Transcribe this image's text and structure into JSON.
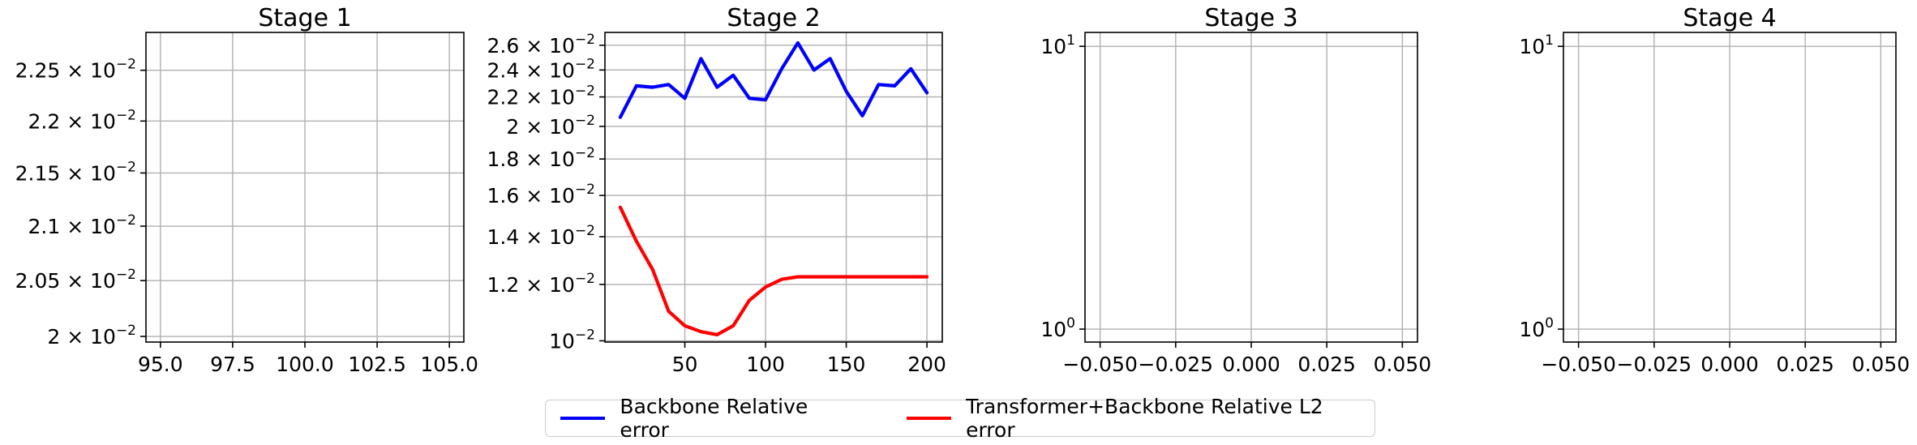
{
  "colors": {
    "backbone": "#0000ff",
    "transformer": "#ff0000",
    "grid": "#b0b0b0"
  },
  "legend": {
    "placement": "bottom-center",
    "items": [
      {
        "label": "Backbone Relative error",
        "color": "#0000ff"
      },
      {
        "label": "Transformer+Backbone Relative L2 error",
        "color": "#ff0000"
      }
    ]
  },
  "chart_data": [
    {
      "type": "line",
      "title": "Stage 1",
      "xscale": "linear",
      "yscale": "log",
      "xlim": [
        94.5,
        105.5
      ],
      "ylim": [
        0.01995,
        0.02288
      ],
      "xticks": [
        95.0,
        97.5,
        100.0,
        102.5,
        105.0
      ],
      "xtick_labels": [
        "95.0",
        "97.5",
        "100.0",
        "102.5",
        "105.0"
      ],
      "yticks": [
        {
          "value": 0.0225,
          "mantissa": "2.25",
          "base": "10",
          "exp": "−2"
        },
        {
          "value": 0.022,
          "mantissa": "2.2",
          "base": "10",
          "exp": "−2"
        },
        {
          "value": 0.0215,
          "mantissa": "2.15",
          "base": "10",
          "exp": "−2"
        },
        {
          "value": 0.021,
          "mantissa": "2.1",
          "base": "10",
          "exp": "−2"
        },
        {
          "value": 0.0205,
          "mantissa": "2.05",
          "base": "10",
          "exp": "−2"
        },
        {
          "value": 0.02,
          "mantissa": "2",
          "base": "10",
          "exp": "−2"
        }
      ],
      "grid": true,
      "series": []
    },
    {
      "type": "line",
      "title": "Stage 2",
      "xscale": "linear",
      "yscale": "log",
      "xlim": [
        0.5,
        209.5
      ],
      "ylim": [
        0.00996,
        0.0271
      ],
      "xticks": [
        50,
        100,
        150,
        200
      ],
      "xtick_labels": [
        "50",
        "100",
        "150",
        "200"
      ],
      "yticks": [
        {
          "value": 0.026,
          "mantissa": "2.6",
          "base": "10",
          "exp": "−2"
        },
        {
          "value": 0.024,
          "mantissa": "2.4",
          "base": "10",
          "exp": "−2"
        },
        {
          "value": 0.022,
          "mantissa": "2.2",
          "base": "10",
          "exp": "−2"
        },
        {
          "value": 0.02,
          "mantissa": "2",
          "base": "10",
          "exp": "−2"
        },
        {
          "value": 0.018,
          "mantissa": "1.8",
          "base": "10",
          "exp": "−2"
        },
        {
          "value": 0.016,
          "mantissa": "1.6",
          "base": "10",
          "exp": "−2"
        },
        {
          "value": 0.014,
          "mantissa": "1.4",
          "base": "10",
          "exp": "−2"
        },
        {
          "value": 0.012,
          "mantissa": "1.2",
          "base": "10",
          "exp": "−2"
        },
        {
          "value": 0.01,
          "mantissa": "10",
          "base": "",
          "exp": "−2"
        }
      ],
      "grid": true,
      "series": [
        {
          "color": "#0000ff",
          "x": [
            10,
            20,
            30,
            40,
            50,
            60,
            70,
            80,
            90,
            100,
            110,
            120,
            130,
            140,
            150,
            160,
            170,
            180,
            190,
            200
          ],
          "y": [
            0.0206,
            0.0228,
            0.0227,
            0.0229,
            0.0219,
            0.0249,
            0.0227,
            0.0236,
            0.0219,
            0.0218,
            0.0241,
            0.0262,
            0.024,
            0.0249,
            0.0224,
            0.0207,
            0.0229,
            0.0228,
            0.0241,
            0.0223
          ]
        },
        {
          "color": "#ff0000",
          "x": [
            10,
            20,
            30,
            40,
            50,
            60,
            70,
            80,
            90,
            100,
            110,
            120,
            130,
            140,
            150,
            160,
            170,
            180,
            190,
            200
          ],
          "y": [
            0.0154,
            0.0138,
            0.0126,
            0.011,
            0.0105,
            0.0103,
            0.0102,
            0.0105,
            0.0114,
            0.0119,
            0.0122,
            0.0123,
            0.0123,
            0.0123,
            0.0123,
            0.0123,
            0.0123,
            0.0123,
            0.0123,
            0.0123
          ]
        }
      ]
    },
    {
      "type": "line",
      "title": "Stage 3",
      "xscale": "linear",
      "yscale": "log",
      "xlim": [
        -0.055,
        0.055
      ],
      "ylim": [
        0.9,
        11.2
      ],
      "xticks": [
        -0.05,
        -0.025,
        0.0,
        0.025,
        0.05
      ],
      "xtick_labels": [
        "−0.050",
        "−0.025",
        "0.000",
        "0.025",
        "0.050"
      ],
      "yticks": [
        {
          "value": 10,
          "mantissa": "10",
          "base": "",
          "exp": "1"
        },
        {
          "value": 1,
          "mantissa": "10",
          "base": "",
          "exp": "0"
        }
      ],
      "grid": true,
      "series": []
    },
    {
      "type": "line",
      "title": "Stage 4",
      "xscale": "linear",
      "yscale": "log",
      "xlim": [
        -0.055,
        0.055
      ],
      "ylim": [
        0.9,
        11.2
      ],
      "xticks": [
        -0.05,
        -0.025,
        0.0,
        0.025,
        0.05
      ],
      "xtick_labels": [
        "−0.050",
        "−0.025",
        "0.000",
        "0.025",
        "0.050"
      ],
      "yticks": [
        {
          "value": 10,
          "mantissa": "10",
          "base": "",
          "exp": "1"
        },
        {
          "value": 1,
          "mantissa": "10",
          "base": "",
          "exp": "0"
        }
      ],
      "grid": true,
      "series": []
    }
  ]
}
